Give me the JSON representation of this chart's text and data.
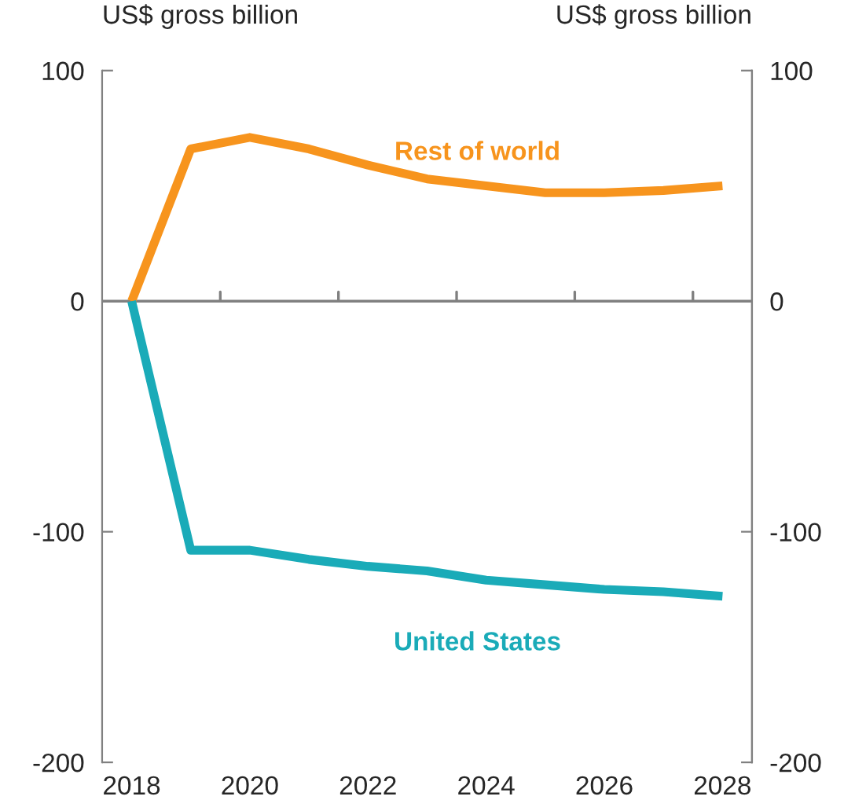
{
  "chart_data": {
    "type": "line",
    "ylabel": "US$ gross billion",
    "y2label": "US$ gross billion",
    "x": [
      2018,
      2019,
      2020,
      2021,
      2022,
      2023,
      2024,
      2025,
      2026,
      2027,
      2028
    ],
    "series": [
      {
        "name": "Rest of world",
        "color": "#f7941d",
        "values": [
          0,
          66,
          71,
          66,
          59,
          53,
          50,
          47,
          47,
          48,
          50
        ]
      },
      {
        "name": "United States",
        "color": "#1aabb8",
        "values": [
          0,
          -108,
          -108,
          -112,
          -115,
          -117,
          -121,
          -123,
          -125,
          -126,
          -128
        ]
      }
    ],
    "xlim": [
      2017.5,
      2028.5
    ],
    "xticks": [
      2018,
      2020,
      2022,
      2024,
      2026,
      2028,
      {
        "value": 2019.5,
        "label": null
      },
      {
        "value": 2021.5,
        "label": null
      },
      {
        "value": 2023.5,
        "label": null
      },
      {
        "value": 2025.5,
        "label": null
      },
      {
        "value": 2027.5,
        "label": null
      }
    ],
    "ylim": [
      -200,
      100
    ],
    "yticks": [
      100,
      0,
      {
        "value": -100,
        "label": "-100"
      },
      {
        "value": -200,
        "label": "-200"
      }
    ],
    "y2lim": [
      -200,
      100
    ],
    "y2ticks": [
      100,
      0,
      {
        "value": -100,
        "label": "-100"
      },
      {
        "value": -200,
        "label": "-200"
      }
    ],
    "ref_lines": [
      {
        "axis": "y",
        "value": 0,
        "color": "#808080"
      }
    ],
    "grid": false,
    "legend": false,
    "marker": "none",
    "line_style": "solid"
  }
}
